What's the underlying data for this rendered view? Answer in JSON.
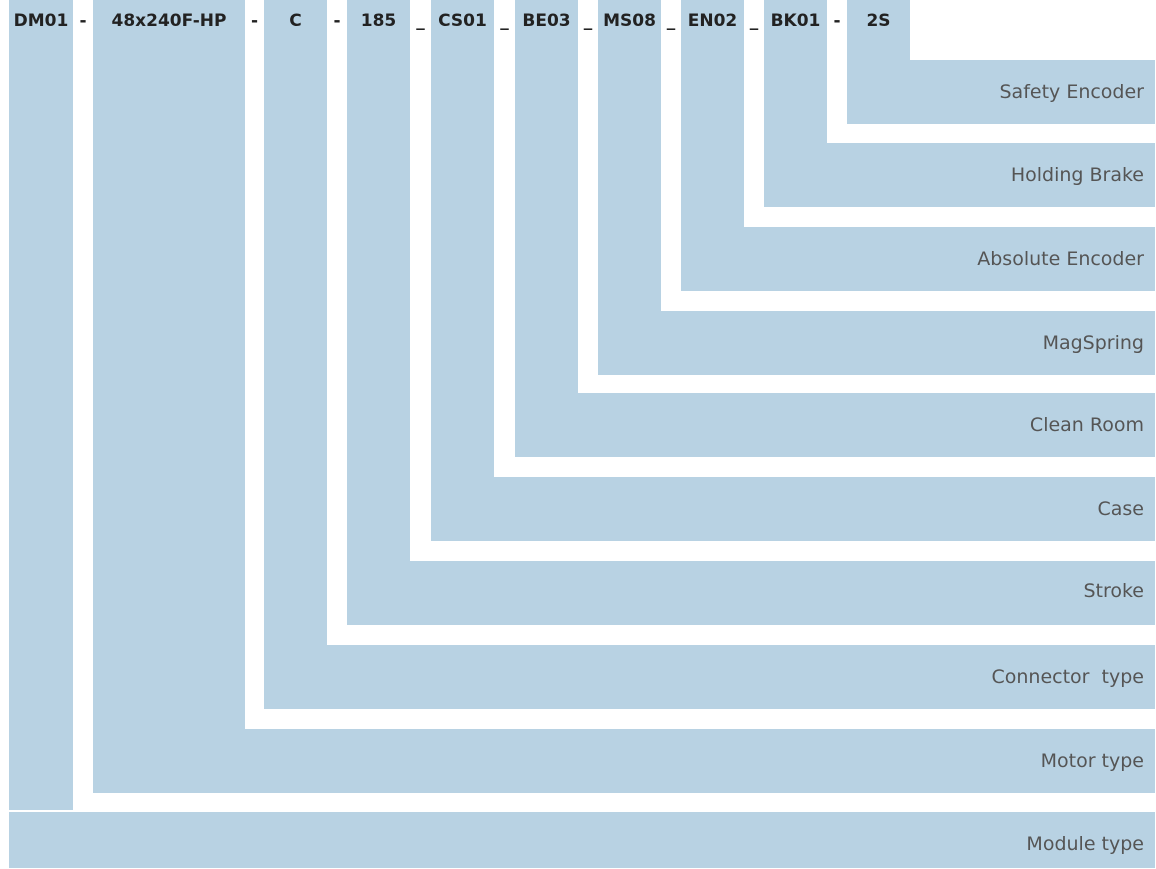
{
  "segments": [
    {
      "code": "DM01",
      "label": "Module type"
    },
    {
      "code": "48x240F-HP",
      "label": "Motor type"
    },
    {
      "code": "C",
      "label": "Connector  type"
    },
    {
      "code": "185",
      "label": "Stroke"
    },
    {
      "code": "CS01",
      "label": "Case"
    },
    {
      "code": "BE03",
      "label": "Clean Room"
    },
    {
      "code": "MS08",
      "label": "MagSpring"
    },
    {
      "code": "EN02",
      "label": "Absolute Encoder"
    },
    {
      "code": "BK01",
      "label": "Holding Brake"
    },
    {
      "code": "2S",
      "label": "Safety Encoder"
    }
  ],
  "separators": [
    "-",
    "-",
    "-",
    "_",
    "_",
    "_",
    "_",
    "_",
    "-"
  ],
  "colors": {
    "fill": "#b8d2e3",
    "code_text": "#222222",
    "label_text": "#555555"
  }
}
